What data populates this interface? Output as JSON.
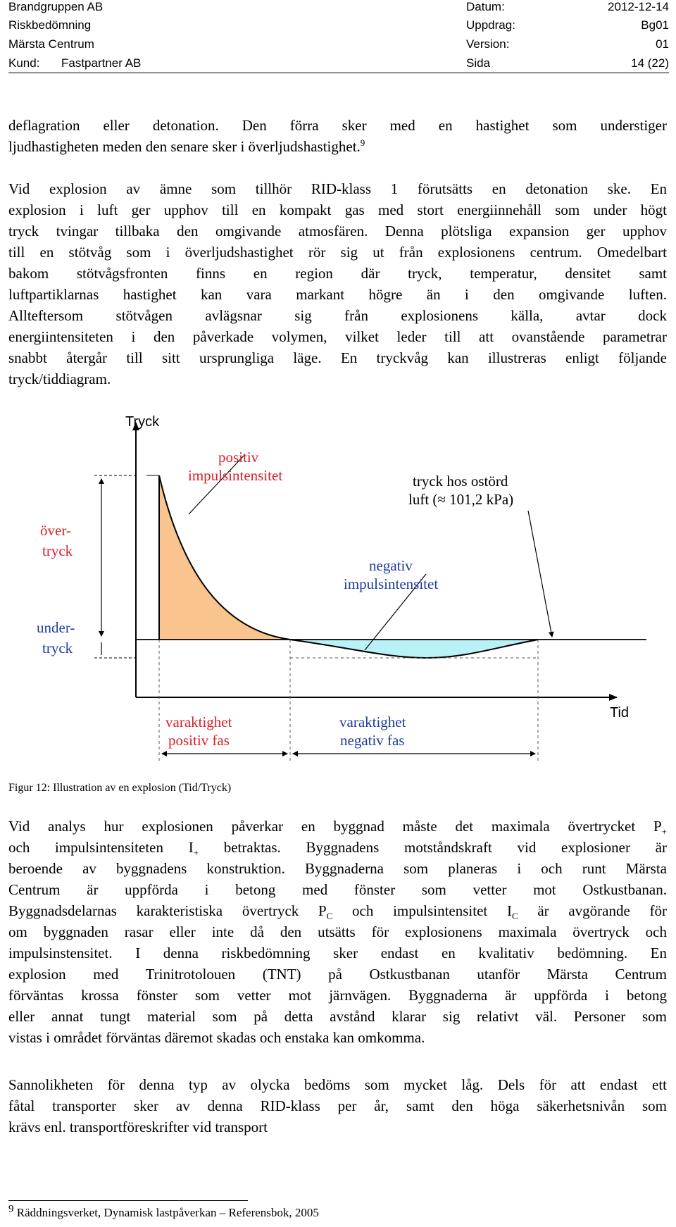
{
  "header": {
    "company": "Brandgruppen AB",
    "doc_type": "Riskbedömning",
    "project": "Märsta Centrum",
    "client_label": "Kund:",
    "client": "Fastpartner AB",
    "date_label": "Datum:",
    "date": "2012-12-14",
    "assignment_label": "Uppdrag:",
    "assignment": "Bg01",
    "version_label": "Version:",
    "version": "01",
    "page_label": "Sida",
    "page": "14 (22)"
  },
  "body": {
    "p1_l1": "deflagration eller detonation. Den förra sker med en hastighet som understiger",
    "p1_l2": "ljudhastigheten meden den senare sker i överljudshastighet.",
    "p1_fnref": "9",
    "p2": [
      "Vid explosion av ämne som tillhör RID-klass 1 förutsätts en detonation ske. En",
      "explosion i luft ger upphov till en kompakt gas med stort energiinnehåll som under högt",
      "tryck tvingar tillbaka den omgivande atmosfären. Denna plötsliga expansion ger upphov",
      "till en stötvåg som i överljudshastighet rör sig ut från explosionens centrum. Omedelbart",
      "bakom stötvågsfronten finns en region där tryck, temperatur, densitet samt",
      "luftpartiklarnas hastighet kan vara markant högre än i den omgivande luften.",
      "Allteftersom stötvågen avlägsnar sig från explosionens källa, avtar dock",
      "energiintensiteten i den påverkade volymen, vilket leder till att ovanstående parametrar",
      "snabbt återgår till sitt ursprungliga läge. En tryckvåg kan illustreras enligt följande",
      "tryck/tiddiagram."
    ],
    "p3_l1a": "Vid analys hur explosionen påverkar en byggnad måste det maximala övertrycket P",
    "p3_l1s": "+",
    "p3_l2a": "och impulsintensiteten I",
    "p3_l2s": "+",
    "p3_l2b": " betraktas. Byggnadens motståndskraft vid explosioner är",
    "p3_l3": "beroende av byggnadens konstruktion. Byggnaderna som planeras i och runt Märsta",
    "p3_l4": "Centrum är uppförda i betong med fönster som vetter mot Ostkustbanan.",
    "p3_l5a": "Byggnadsdelarnas karakteristiska övertryck P",
    "p3_l5s1": "C",
    "p3_l5b": " och impulsintensitet I",
    "p3_l5s2": "C",
    "p3_l5c": " är avgörande för",
    "p3_rest": [
      "om byggnaden rasar eller inte då den utsätts för explosionens maximala övertryck och",
      "impulsinstensitet. I denna riskbedömning sker endast en kvalitativ bedömning. En",
      "explosion med Trinitrotolouen (TNT) på Ostkustbanan utanför Märsta Centrum",
      "förväntas krossa fönster som vetter mot järnvägen. Byggnaderna är uppförda i betong",
      "eller annat tungt material som på detta avstånd klarar sig relativt väl. Personer som",
      "vistas i området förväntas däremot skadas och enstaka kan omkomma."
    ],
    "p4": [
      "Sannolikheten för denna typ av olycka bedöms som mycket låg. Dels för att endast ett",
      "fåtal transporter sker av denna RID-klass per år, samt den höga säkerhetsnivån som",
      "krävs enl. transportföreskrifter vid transport"
    ]
  },
  "figure": {
    "y_axis_label": "Tryck",
    "x_axis_label": "Tid",
    "overpressure_l1": "över-",
    "overpressure_l2": "tryck",
    "underpressure_l1": "under-",
    "underpressure_l2": "tryck",
    "positive_l1": "positiv",
    "positive_l2": "impulsintensitet",
    "negative_l1": "negativ",
    "negative_l2": "impulsintensitet",
    "ambient_l1": "tryck hos ostörd",
    "ambient_l2": "luft (≈ 101,2 kPa)",
    "dur_pos_l1": "varaktighet",
    "dur_pos_l2": "positiv fas",
    "dur_neg_l1": "varaktighet",
    "dur_neg_l2": "negativ fas",
    "caption": "Figur 12: Illustration av en explosion (Tid/Tryck)",
    "colors": {
      "positive_fill": "#f9c48d",
      "negative_fill": "#b8f1f6",
      "label_red": "#d9202a",
      "label_blue": "#1e3c9c"
    }
  },
  "footnote": {
    "number": "9",
    "text": " Räddningsverket, Dynamisk lastpåverkan – Referensbok, 2005"
  }
}
